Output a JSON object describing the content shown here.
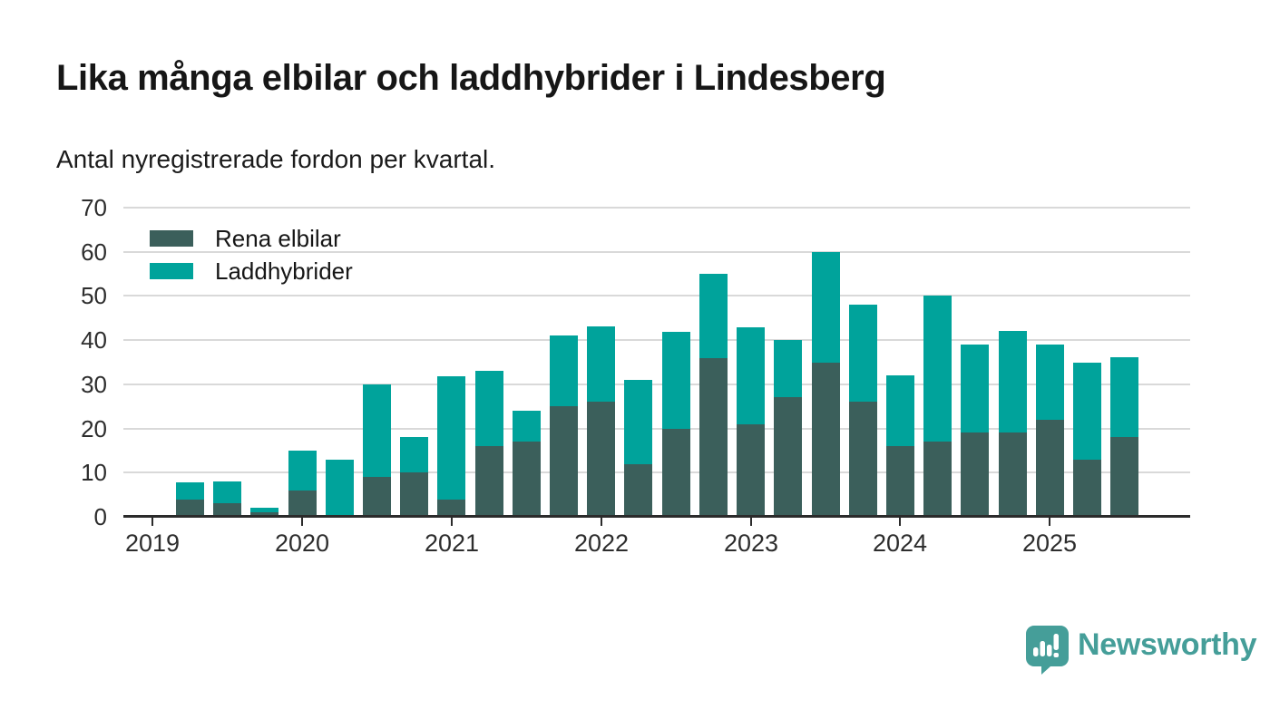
{
  "title": "Lika många elbilar och laddhybrider i Lindesberg",
  "subtitle": "Antal nyregistrerade fordon per kvartal.",
  "legend": {
    "items": [
      {
        "label": "Rena elbilar",
        "color": "#3b5f5b"
      },
      {
        "label": "Laddhybrider",
        "color": "#00a39b"
      }
    ]
  },
  "chart_data": {
    "type": "bar",
    "stacked": true,
    "title": "Lika många elbilar och laddhybrider i Lindesberg",
    "subtitle": "Antal nyregistrerade fordon per kvartal.",
    "x": [
      "2019 Q2",
      "2019 Q3",
      "2019 Q4",
      "2020 Q1",
      "2020 Q2",
      "2020 Q3",
      "2020 Q4",
      "2021 Q1",
      "2021 Q2",
      "2021 Q3",
      "2021 Q4",
      "2022 Q1",
      "2022 Q2",
      "2022 Q3",
      "2022 Q4",
      "2023 Q1",
      "2023 Q2",
      "2023 Q3",
      "2023 Q4",
      "2024 Q1",
      "2024 Q2",
      "2024 Q3",
      "2024 Q4",
      "2025 Q1",
      "2025 Q2",
      "2025 Q3"
    ],
    "series": [
      {
        "name": "Rena elbilar",
        "color": "#3b5f5b",
        "values": [
          4,
          3,
          1,
          6,
          0,
          9,
          10,
          4,
          16,
          17,
          25,
          26,
          12,
          20,
          36,
          21,
          27,
          35,
          26,
          16,
          17,
          19,
          19,
          22,
          13,
          18
        ]
      },
      {
        "name": "Laddhybrider",
        "color": "#00a39b",
        "values": [
          4,
          5,
          1,
          9,
          13,
          21,
          8,
          28,
          17,
          7,
          16,
          17,
          19,
          22,
          19,
          22,
          13,
          25,
          22,
          16,
          33,
          20,
          23,
          17,
          22,
          18
        ]
      }
    ],
    "totals": [
      8,
      8,
      2,
      15,
      13,
      30,
      18,
      32,
      33,
      24,
      41,
      43,
      31,
      42,
      55,
      43,
      40,
      60,
      48,
      32,
      50,
      39,
      42,
      39,
      35,
      36
    ],
    "ylim": [
      0,
      70
    ],
    "yticks": [
      0,
      10,
      20,
      30,
      40,
      50,
      60,
      70
    ],
    "xticks": [
      "2019",
      "2020",
      "2021",
      "2022",
      "2023",
      "2024",
      "2025"
    ],
    "first_bar_offset_quarters": 1,
    "grid": "horizontal",
    "legend_position": "top-left"
  },
  "branding": {
    "logo_text": "Newsworthy",
    "logo_color": "#459e99",
    "logo_icon": "speech-bubble-bar-chart-icon"
  }
}
